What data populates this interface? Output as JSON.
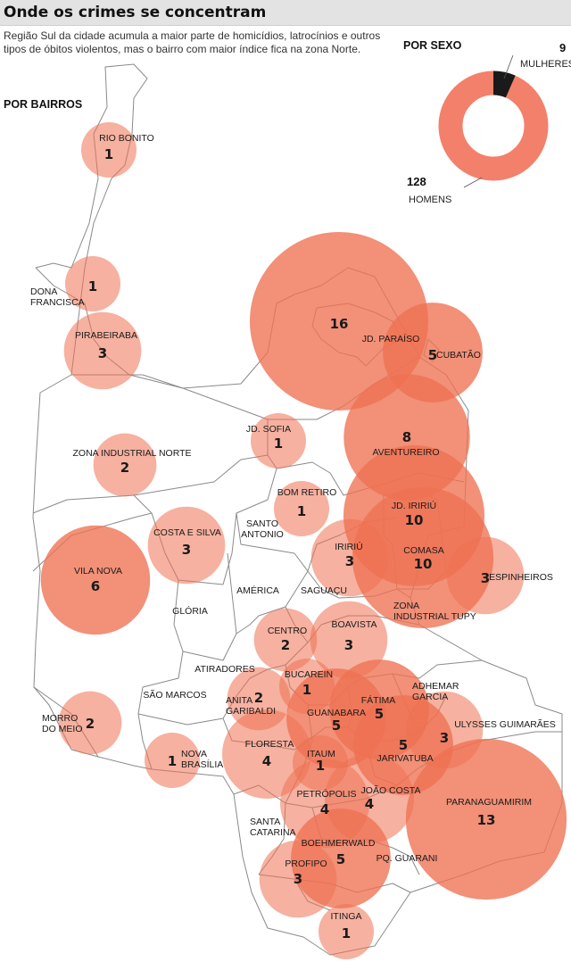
{
  "header": {
    "title": "Onde os crimes se concentram",
    "subtitle": "Região Sul da cidade acumula a maior parte de homicídios, latrocínios e outros tipos de óbitos violentos, mas o bairro com maior índice fica na zona Norte."
  },
  "sections": {
    "by_neighborhood": "POR BAIRROS",
    "by_sex": "POR SEXO"
  },
  "colors": {
    "bubble": "#ee7152",
    "women": "#1a1a1a",
    "men": "#f3806a",
    "border": "#8a8a8a"
  },
  "sex": {
    "women": {
      "label": "MULHERES",
      "value": 9
    },
    "men": {
      "label": "HOMENS",
      "value": 128
    }
  },
  "neighborhoods": [
    {
      "name": "RIO BONITO",
      "value": 1
    },
    {
      "name": "DONA FRANCISCA",
      "value": 1
    },
    {
      "name": "PIRABEIRABA",
      "value": 3
    },
    {
      "name": "JD. PARAÍSO",
      "value": 16
    },
    {
      "name": "CUBATÃO",
      "value": 5
    },
    {
      "name": "JD. SOFIA",
      "value": 1
    },
    {
      "name": "ZONA INDUSTRIAL NORTE",
      "value": 2
    },
    {
      "name": "AVENTUREIRO",
      "value": 8
    },
    {
      "name": "BOM RETIRO",
      "value": 1
    },
    {
      "name": "JD. IRIRIÚ",
      "value": 10
    },
    {
      "name": "COSTA E SILVA",
      "value": 3
    },
    {
      "name": "SANTO ANTONIO",
      "value": null
    },
    {
      "name": "IRIRIÚ",
      "value": 3
    },
    {
      "name": "COMASA",
      "value": 10
    },
    {
      "name": "ESPINHEIROS",
      "value": 3
    },
    {
      "name": "VILA NOVA",
      "value": 6
    },
    {
      "name": "AMÉRICA",
      "value": null
    },
    {
      "name": "SAGUAÇU",
      "value": null
    },
    {
      "name": "GLÓRIA",
      "value": null
    },
    {
      "name": "ZONA INDUSTRIAL TUPY",
      "value": null
    },
    {
      "name": "CENTRO",
      "value": 2
    },
    {
      "name": "BOAVISTA",
      "value": 3
    },
    {
      "name": "ATIRADORES",
      "value": null
    },
    {
      "name": "BUCAREIN",
      "value": 1
    },
    {
      "name": "SÃO MARCOS",
      "value": null
    },
    {
      "name": "ANITA GARIBALDI",
      "value": 2
    },
    {
      "name": "ADHEMAR GARCIA",
      "value": null
    },
    {
      "name": "FÁTIMA",
      "value": 5
    },
    {
      "name": "MORRO DO MEIO",
      "value": 2
    },
    {
      "name": "GUANABARA",
      "value": 5
    },
    {
      "name": "ULYSSES GUIMARÃES",
      "value": 3
    },
    {
      "name": "FLORESTA",
      "value": 4
    },
    {
      "name": "NOVA BRASÍLIA",
      "value": 1
    },
    {
      "name": "ITAUM",
      "value": 1
    },
    {
      "name": "JARIVATUBA",
      "value": 5
    },
    {
      "name": "PETRÓPOLIS",
      "value": 4
    },
    {
      "name": "JOÃO COSTA",
      "value": 4
    },
    {
      "name": "PARANAGUAMIRIM",
      "value": 13
    },
    {
      "name": "SANTA CATARINA",
      "value": null
    },
    {
      "name": "BOEHMERWALD",
      "value": 5
    },
    {
      "name": "PROFIPO",
      "value": 3
    },
    {
      "name": "PQ. GUARANI",
      "value": null
    },
    {
      "name": "ITINGA",
      "value": 1
    }
  ]
}
